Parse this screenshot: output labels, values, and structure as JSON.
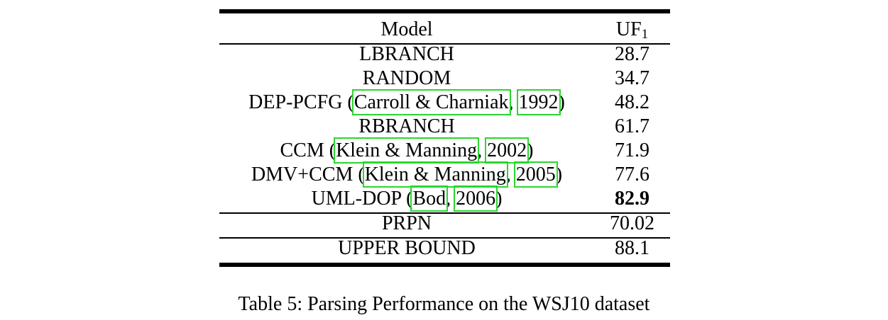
{
  "table": {
    "header": {
      "model": "Model",
      "uf_main": "UF",
      "uf_sub": "1"
    },
    "rows": [
      {
        "plain": "LBRANCH",
        "score": "28.7"
      },
      {
        "plain": "RANDOM",
        "score": "34.7"
      },
      {
        "prefix": "DEP-PCFG (",
        "cite_authors": "Carroll & Charniak",
        "sep": ", ",
        "cite_year": "1992",
        "suffix": ")",
        "score": "48.2"
      },
      {
        "plain": "RBRANCH",
        "score": "61.7"
      },
      {
        "prefix": "CCM (",
        "cite_authors": "Klein & Manning",
        "sep": ", ",
        "cite_year": "2002",
        "suffix": ")",
        "score": "71.9"
      },
      {
        "prefix": "DMV+CCM (",
        "cite_authors": "Klein & Manning",
        "sep": ", ",
        "cite_year": "2005",
        "suffix": ")",
        "score": "77.6"
      },
      {
        "prefix": "UML-DOP (",
        "cite_authors": "Bod",
        "sep": ", ",
        "cite_year": "2006",
        "suffix": ")",
        "score": "82.9",
        "bold": true
      }
    ],
    "prpn": {
      "label": "PRPN",
      "score": "70.02"
    },
    "upper": {
      "label": "UPPER BOUND",
      "score": "88.1"
    }
  },
  "caption": "Table 5: Parsing Performance on the WSJ10 dataset",
  "colors": {
    "citation_box": "#29d62f"
  }
}
